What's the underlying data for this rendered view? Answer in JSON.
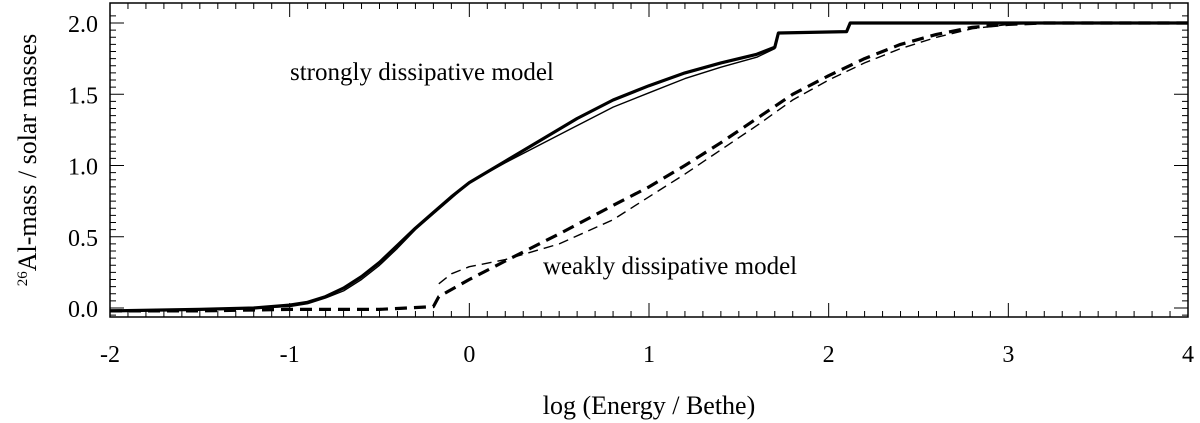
{
  "chart_data": {
    "type": "line",
    "xlabel": "log (Energy / Bethe)",
    "ylabel_sup": "26",
    "ylabel": "Al-mass / solar masses",
    "xlim": [
      -2,
      4
    ],
    "ylim": [
      -0.05,
      2.08
    ],
    "x_ticks": [
      "-2",
      "-1",
      "0",
      "1",
      "2",
      "3",
      "4"
    ],
    "y_ticks": [
      "0.0",
      "0.5",
      "1.0",
      "1.5",
      "2.0"
    ],
    "grid": false,
    "annotations": {
      "strong": "strongly dissipative model",
      "weak": "weakly dissipative model"
    },
    "series": [
      {
        "style": "solid-thick",
        "x": [
          -2.0,
          -1.5,
          -1.2,
          -1.0,
          -0.9,
          -0.8,
          -0.7,
          -0.6,
          -0.5,
          -0.4,
          -0.3,
          -0.2,
          -0.1,
          0.0,
          0.2,
          0.4,
          0.6,
          0.8,
          1.0,
          1.2,
          1.4,
          1.6,
          1.7,
          1.72,
          2.1,
          2.12,
          3.0,
          4.0
        ],
        "y": [
          -0.02,
          -0.01,
          0.0,
          0.02,
          0.04,
          0.08,
          0.14,
          0.22,
          0.32,
          0.44,
          0.56,
          0.67,
          0.78,
          0.88,
          1.03,
          1.18,
          1.33,
          1.46,
          1.56,
          1.65,
          1.72,
          1.78,
          1.83,
          1.93,
          1.94,
          2.0,
          2.0,
          2.0
        ]
      },
      {
        "style": "solid-thin",
        "x": [
          -2.0,
          -1.5,
          -1.2,
          -1.0,
          -0.9,
          -0.8,
          -0.7,
          -0.6,
          -0.5,
          -0.4,
          -0.3,
          -0.2,
          -0.1,
          0.0,
          0.2,
          0.4,
          0.6,
          0.8,
          1.0,
          1.2,
          1.4,
          1.6,
          1.7,
          1.72,
          2.1,
          2.12,
          3.0,
          4.0
        ],
        "y": [
          -0.02,
          -0.01,
          0.0,
          0.01,
          0.03,
          0.07,
          0.12,
          0.2,
          0.3,
          0.42,
          0.55,
          0.66,
          0.77,
          0.88,
          1.02,
          1.15,
          1.28,
          1.41,
          1.51,
          1.61,
          1.69,
          1.76,
          1.82,
          1.93,
          1.94,
          2.0,
          2.0,
          2.0
        ]
      },
      {
        "style": "dashed-thick",
        "x": [
          -2.0,
          -1.5,
          -1.0,
          -0.5,
          -0.2,
          -0.17,
          0.0,
          0.2,
          0.5,
          0.8,
          1.0,
          1.2,
          1.4,
          1.6,
          1.8,
          2.0,
          2.2,
          2.4,
          2.6,
          2.8,
          3.0,
          3.2,
          4.0
        ],
        "y": [
          -0.02,
          -0.02,
          -0.01,
          -0.01,
          0.01,
          0.08,
          0.2,
          0.33,
          0.52,
          0.72,
          0.85,
          1.0,
          1.16,
          1.33,
          1.5,
          1.63,
          1.75,
          1.85,
          1.92,
          1.97,
          1.99,
          2.0,
          2.0
        ]
      },
      {
        "style": "dashed-thin",
        "x": [
          -0.17,
          -0.1,
          0.0,
          0.2,
          0.5,
          0.8,
          1.0,
          1.2,
          1.4,
          1.6,
          1.8,
          2.0,
          2.2,
          2.4,
          2.6,
          2.8,
          3.0,
          3.2,
          4.0
        ],
        "y": [
          0.17,
          0.24,
          0.29,
          0.34,
          0.45,
          0.62,
          0.78,
          0.94,
          1.11,
          1.28,
          1.46,
          1.6,
          1.72,
          1.82,
          1.9,
          1.96,
          1.99,
          2.0,
          2.0
        ]
      }
    ]
  }
}
